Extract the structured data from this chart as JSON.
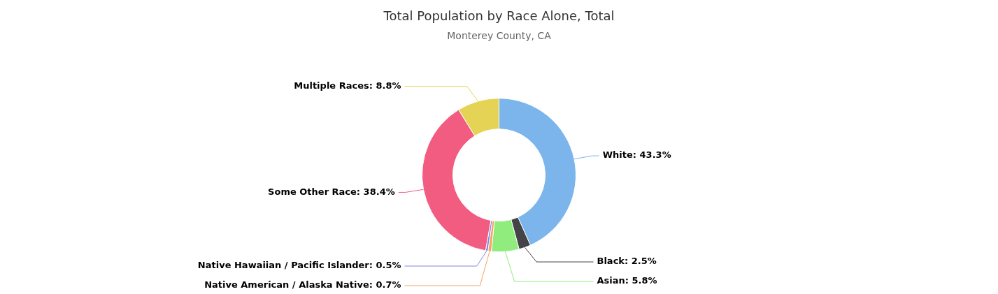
{
  "chart_data": {
    "type": "donut",
    "title": "Total Population by Race Alone, Total",
    "subtitle": "Monterey County, CA",
    "categories": [
      "White",
      "Black",
      "Asian",
      "Native American / Alaska Native",
      "Native Hawaiian / Pacific Islander",
      "Some Other Race",
      "Multiple Races"
    ],
    "values": [
      43.3,
      2.5,
      5.8,
      0.7,
      0.5,
      38.4,
      8.8
    ],
    "colors": [
      "#7cb5ec",
      "#434348",
      "#90ed7d",
      "#f7a35c",
      "#8085e9",
      "#f15c80",
      "#e4d354"
    ],
    "value_labels": [
      ": 43.3%",
      ": 2.5%",
      ": 5.8%",
      ": 0.7%",
      ": 0.5%",
      ": 38.4%",
      ": 8.8%"
    ],
    "legend": false
  }
}
